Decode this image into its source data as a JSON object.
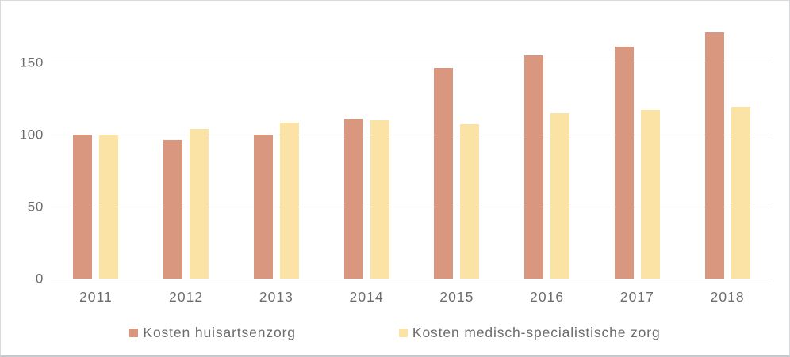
{
  "chart_data": {
    "type": "bar",
    "title": "",
    "categories": [
      "2011",
      "2012",
      "2013",
      "2014",
      "2015",
      "2016",
      "2017",
      "2018"
    ],
    "series": [
      {
        "name": "Kosten huisartsenzorg",
        "color": "#D9977F",
        "values": [
          100,
          96,
          100,
          111,
          146,
          155,
          161,
          171
        ]
      },
      {
        "name": "Kosten medisch-specialistische zorg",
        "color": "#FBE3A5",
        "values": [
          100,
          104,
          108,
          110,
          107,
          115,
          117,
          119
        ]
      }
    ],
    "xlabel": "",
    "ylabel": "",
    "yticks": [
      0,
      50,
      100,
      150
    ],
    "ylim": [
      0,
      190
    ],
    "grid": "horizontal",
    "legend_position": "bottom",
    "colors": {
      "axis_text": "#6C6C6C",
      "gridline": "#DEDEDE",
      "baseline": "#C9C9C9",
      "background": "#FFFFFF"
    }
  }
}
